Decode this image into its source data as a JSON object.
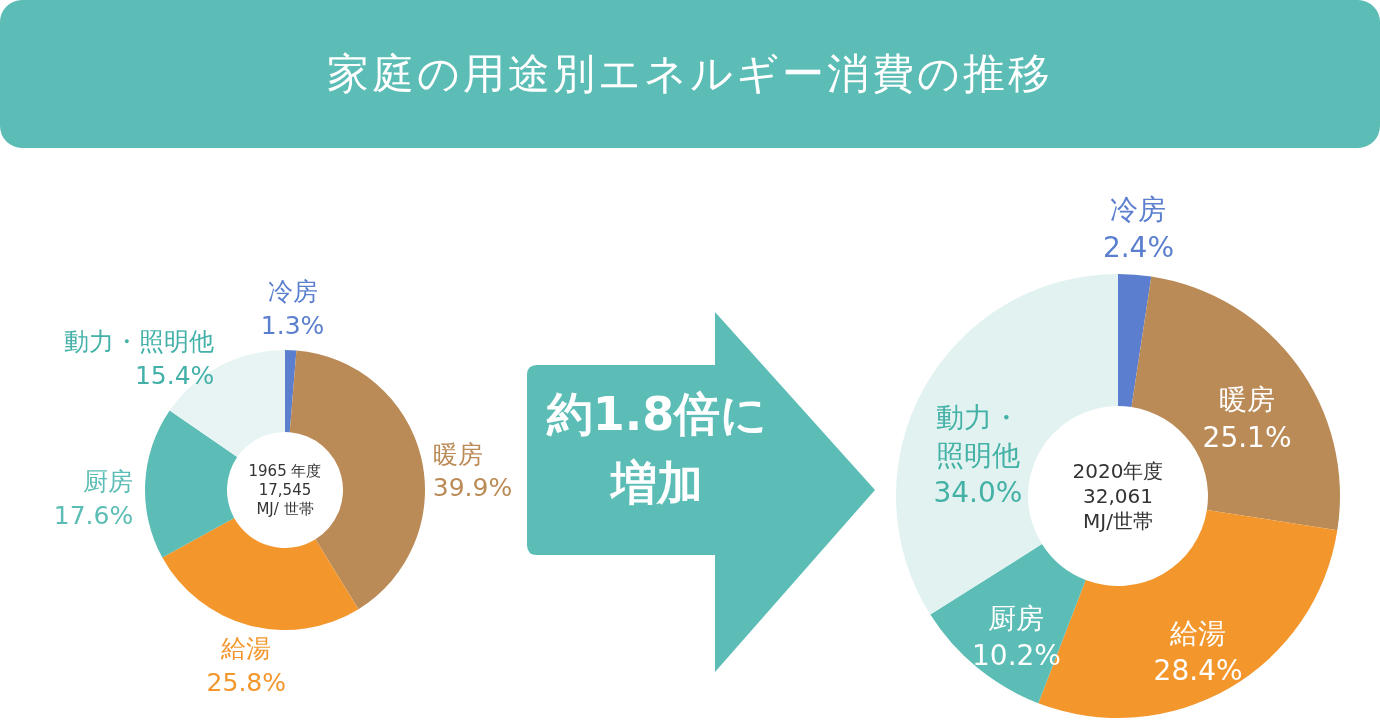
{
  "chart_data": [
    {
      "type": "donut",
      "title": "家庭の用途別エネルギー消費の推移",
      "subtitle": "1965 年度\n17,545\nMJ/ 世帯",
      "categories": [
        "冷房",
        "暖房",
        "給湯",
        "厨房",
        "動力・照明他"
      ],
      "values": [
        1.3,
        39.9,
        25.8,
        17.6,
        15.4
      ],
      "value_labels": [
        "1.3%",
        "39.9%",
        "25.8%",
        "17.6%",
        "15.4%"
      ],
      "colors": [
        "#5b7fce",
        "#bb8b57",
        "#f3972d",
        "#5bbdb5",
        "#e8f4f3"
      ],
      "annotations": [
        "約1.8倍に",
        "増加"
      ]
    },
    {
      "type": "donut",
      "subtitle": "2020年度\n32,061\nMJ/世帯",
      "categories": [
        "冷房",
        "暖房",
        "給湯",
        "厨房",
        "動力・照明他"
      ],
      "values": [
        2.4,
        25.1,
        28.4,
        10.2,
        34.0
      ],
      "value_labels": [
        "2.4%",
        "25.1%",
        "28.4%",
        "10.2%",
        "34.0%"
      ],
      "colors": [
        "#5b7fce",
        "#bb8b57",
        "#f3972d",
        "#5bbdb5",
        "#e1f2f0"
      ]
    }
  ]
}
